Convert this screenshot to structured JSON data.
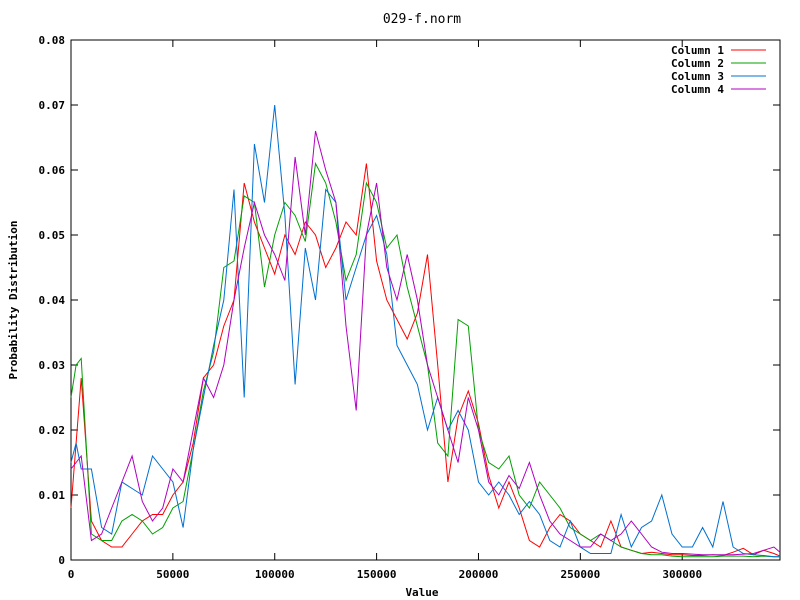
{
  "chart_data": {
    "type": "line",
    "title": "029-f.norm",
    "xlabel": "Value",
    "ylabel": "Probability Distribution",
    "xlim": [
      0,
      348000
    ],
    "ylim": [
      0,
      0.08
    ],
    "grid": false,
    "legend_position": "top-right",
    "x_ticks": [
      {
        "value": 0,
        "label": "0"
      },
      {
        "value": 50000,
        "label": "50000"
      },
      {
        "value": 100000,
        "label": "100000"
      },
      {
        "value": 150000,
        "label": "150000"
      },
      {
        "value": 200000,
        "label": "200000"
      },
      {
        "value": 250000,
        "label": "250000"
      },
      {
        "value": 300000,
        "label": "300000"
      }
    ],
    "y_ticks": [
      {
        "value": 0,
        "label": "0"
      },
      {
        "value": 0.01,
        "label": "0.01"
      },
      {
        "value": 0.02,
        "label": "0.02"
      },
      {
        "value": 0.03,
        "label": "0.03"
      },
      {
        "value": 0.04,
        "label": "0.04"
      },
      {
        "value": 0.05,
        "label": "0.05"
      },
      {
        "value": 0.06,
        "label": "0.06"
      },
      {
        "value": 0.07,
        "label": "0.07"
      },
      {
        "value": 0.08,
        "label": "0.08"
      }
    ],
    "series": [
      {
        "name": "Column 1",
        "color": "#ff0000",
        "x": [
          0,
          2500,
          5000,
          10000,
          15000,
          20000,
          25000,
          30000,
          35000,
          40000,
          45000,
          50000,
          55000,
          60000,
          65000,
          70000,
          75000,
          80000,
          85000,
          90000,
          95000,
          100000,
          105000,
          110000,
          115000,
          120000,
          125000,
          130000,
          135000,
          140000,
          145000,
          150000,
          155000,
          160000,
          165000,
          170000,
          175000,
          180000,
          185000,
          190000,
          195000,
          200000,
          205000,
          210000,
          215000,
          220000,
          225000,
          230000,
          235000,
          240000,
          245000,
          250000,
          255000,
          260000,
          265000,
          270000,
          275000,
          280000,
          285000,
          290000,
          295000,
          300000,
          305000,
          310000,
          315000,
          320000,
          325000,
          330000,
          335000,
          340000,
          345000,
          348000
        ],
        "y": [
          0.008,
          0.018,
          0.028,
          0.006,
          0.003,
          0.002,
          0.002,
          0.004,
          0.006,
          0.007,
          0.007,
          0.01,
          0.012,
          0.018,
          0.028,
          0.03,
          0.036,
          0.04,
          0.058,
          0.052,
          0.048,
          0.044,
          0.05,
          0.047,
          0.052,
          0.05,
          0.045,
          0.048,
          0.052,
          0.05,
          0.061,
          0.046,
          0.04,
          0.037,
          0.034,
          0.038,
          0.047,
          0.03,
          0.012,
          0.022,
          0.026,
          0.021,
          0.013,
          0.008,
          0.012,
          0.008,
          0.003,
          0.002,
          0.005,
          0.007,
          0.006,
          0.004,
          0.003,
          0.002,
          0.006,
          0.002,
          0.0015,
          0.001,
          0.0012,
          0.001,
          0.0008,
          0.0008,
          0.0007,
          0.0007,
          0.0008,
          0.0007,
          0.0012,
          0.0018,
          0.0008,
          0.0015,
          0.001,
          0.0006
        ]
      },
      {
        "name": "Column 2",
        "color": "#00a000",
        "x": [
          0,
          2500,
          5000,
          10000,
          15000,
          20000,
          25000,
          30000,
          35000,
          40000,
          45000,
          50000,
          55000,
          60000,
          65000,
          70000,
          75000,
          80000,
          85000,
          90000,
          95000,
          100000,
          105000,
          110000,
          115000,
          120000,
          125000,
          130000,
          135000,
          140000,
          145000,
          150000,
          155000,
          160000,
          165000,
          170000,
          175000,
          180000,
          185000,
          190000,
          195000,
          200000,
          205000,
          210000,
          215000,
          220000,
          225000,
          230000,
          235000,
          240000,
          245000,
          250000,
          255000,
          260000,
          265000,
          270000,
          275000,
          280000,
          285000,
          290000,
          295000,
          300000,
          305000,
          310000,
          315000,
          320000,
          325000,
          330000,
          335000,
          340000,
          345000,
          348000
        ],
        "y": [
          0.025,
          0.03,
          0.031,
          0.004,
          0.003,
          0.003,
          0.006,
          0.007,
          0.006,
          0.004,
          0.005,
          0.008,
          0.009,
          0.017,
          0.026,
          0.032,
          0.045,
          0.046,
          0.056,
          0.055,
          0.042,
          0.05,
          0.055,
          0.053,
          0.049,
          0.061,
          0.058,
          0.052,
          0.043,
          0.047,
          0.058,
          0.055,
          0.048,
          0.05,
          0.042,
          0.036,
          0.03,
          0.018,
          0.016,
          0.037,
          0.036,
          0.02,
          0.015,
          0.014,
          0.016,
          0.01,
          0.008,
          0.012,
          0.01,
          0.008,
          0.005,
          0.004,
          0.003,
          0.004,
          0.003,
          0.002,
          0.0015,
          0.001,
          0.0008,
          0.0008,
          0.0006,
          0.0005,
          0.0005,
          0.0005,
          0.0005,
          0.0006,
          0.0006,
          0.0006,
          0.0005,
          0.0006,
          0.0005,
          0.0005
        ]
      },
      {
        "name": "Column 3",
        "color": "#0070d0",
        "x": [
          0,
          2500,
          5000,
          10000,
          15000,
          20000,
          25000,
          30000,
          35000,
          40000,
          45000,
          50000,
          55000,
          60000,
          65000,
          70000,
          75000,
          80000,
          85000,
          90000,
          95000,
          100000,
          105000,
          110000,
          115000,
          120000,
          125000,
          130000,
          135000,
          140000,
          145000,
          150000,
          155000,
          160000,
          165000,
          170000,
          175000,
          180000,
          185000,
          190000,
          195000,
          200000,
          205000,
          210000,
          215000,
          220000,
          225000,
          230000,
          235000,
          240000,
          245000,
          250000,
          255000,
          260000,
          265000,
          270000,
          275000,
          280000,
          285000,
          290000,
          295000,
          300000,
          305000,
          310000,
          315000,
          320000,
          325000,
          330000,
          335000,
          340000,
          345000,
          348000
        ],
        "y": [
          0.015,
          0.018,
          0.014,
          0.014,
          0.005,
          0.004,
          0.012,
          0.011,
          0.01,
          0.016,
          0.014,
          0.012,
          0.005,
          0.017,
          0.025,
          0.033,
          0.04,
          0.057,
          0.025,
          0.064,
          0.055,
          0.07,
          0.053,
          0.027,
          0.048,
          0.04,
          0.057,
          0.055,
          0.04,
          0.045,
          0.05,
          0.053,
          0.047,
          0.033,
          0.03,
          0.027,
          0.02,
          0.025,
          0.02,
          0.023,
          0.02,
          0.012,
          0.01,
          0.012,
          0.01,
          0.007,
          0.009,
          0.007,
          0.003,
          0.002,
          0.006,
          0.002,
          0.001,
          0.001,
          0.001,
          0.007,
          0.002,
          0.005,
          0.006,
          0.01,
          0.004,
          0.002,
          0.002,
          0.005,
          0.002,
          0.009,
          0.002,
          0.001,
          0.0008,
          0.0007,
          0.0005,
          0.0005
        ]
      },
      {
        "name": "Column 4",
        "color": "#b000c0",
        "x": [
          0,
          2500,
          5000,
          10000,
          15000,
          20000,
          25000,
          30000,
          35000,
          40000,
          45000,
          50000,
          55000,
          60000,
          65000,
          70000,
          75000,
          80000,
          85000,
          90000,
          95000,
          100000,
          105000,
          110000,
          115000,
          120000,
          125000,
          130000,
          135000,
          140000,
          145000,
          150000,
          155000,
          160000,
          165000,
          170000,
          175000,
          180000,
          185000,
          190000,
          195000,
          200000,
          205000,
          210000,
          215000,
          220000,
          225000,
          230000,
          235000,
          240000,
          245000,
          250000,
          255000,
          260000,
          265000,
          270000,
          275000,
          280000,
          285000,
          290000,
          295000,
          300000,
          305000,
          310000,
          315000,
          320000,
          325000,
          330000,
          335000,
          340000,
          345000,
          348000
        ],
        "y": [
          0.014,
          0.015,
          0.016,
          0.003,
          0.004,
          0.008,
          0.012,
          0.016,
          0.009,
          0.006,
          0.008,
          0.014,
          0.012,
          0.02,
          0.028,
          0.025,
          0.03,
          0.04,
          0.048,
          0.055,
          0.05,
          0.047,
          0.043,
          0.062,
          0.05,
          0.066,
          0.06,
          0.055,
          0.036,
          0.023,
          0.05,
          0.058,
          0.045,
          0.04,
          0.047,
          0.04,
          0.03,
          0.025,
          0.02,
          0.015,
          0.025,
          0.02,
          0.012,
          0.01,
          0.013,
          0.011,
          0.015,
          0.01,
          0.006,
          0.004,
          0.003,
          0.002,
          0.002,
          0.004,
          0.003,
          0.004,
          0.006,
          0.004,
          0.002,
          0.0012,
          0.001,
          0.001,
          0.0009,
          0.0008,
          0.0008,
          0.0008,
          0.0008,
          0.0009,
          0.001,
          0.0015,
          0.002,
          0.0012
        ]
      }
    ]
  }
}
